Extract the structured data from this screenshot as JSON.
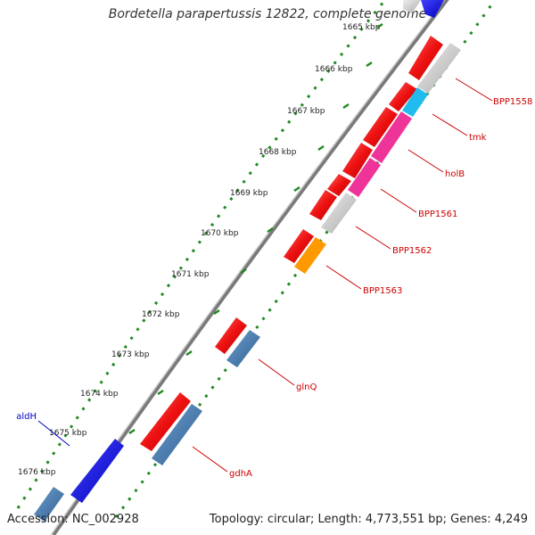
{
  "title": "Bordetella parapertussis 12822, complete genome",
  "footer": {
    "accession": "Accession: NC_002928",
    "summary": "Topology: circular; Length: 4,773,551 bp; Genes: 4,249"
  },
  "ticks": [
    {
      "label": "1665 kbp"
    },
    {
      "label": "1666 kbp"
    },
    {
      "label": "1667 kbp"
    },
    {
      "label": "1668 kbp"
    },
    {
      "label": "1669 kbp"
    },
    {
      "label": "1670 kbp"
    },
    {
      "label": "1671 kbp"
    },
    {
      "label": "1672 kbp"
    },
    {
      "label": "1673 kbp"
    },
    {
      "label": "1674 kbp"
    },
    {
      "label": "1675 kbp"
    },
    {
      "label": "1676 kbp"
    }
  ],
  "gene_labels": [
    {
      "text": "BPP1558",
      "color": "#cc0000"
    },
    {
      "text": "tmk",
      "color": "#cc0000"
    },
    {
      "text": "holB",
      "color": "#cc0000"
    },
    {
      "text": "BPP1561",
      "color": "#cc0000"
    },
    {
      "text": "BPP1562",
      "color": "#cc0000"
    },
    {
      "text": "BPP1563",
      "color": "#cc0000"
    },
    {
      "text": "glnQ",
      "color": "#cc0000"
    },
    {
      "text": "gdhA",
      "color": "#cc0000"
    },
    {
      "text": "aldH",
      "color": "#0000cc"
    }
  ],
  "colors": {
    "backbone": "#7a7a7a",
    "gc_dots": "#228822",
    "cds_red": "#ee1111",
    "gray": "#c8c8c8",
    "cyan": "#22bbee",
    "magenta": "#ee3399",
    "orange": "#ff9900",
    "steelblue": "#4682b4",
    "blue": "#0000ee"
  }
}
